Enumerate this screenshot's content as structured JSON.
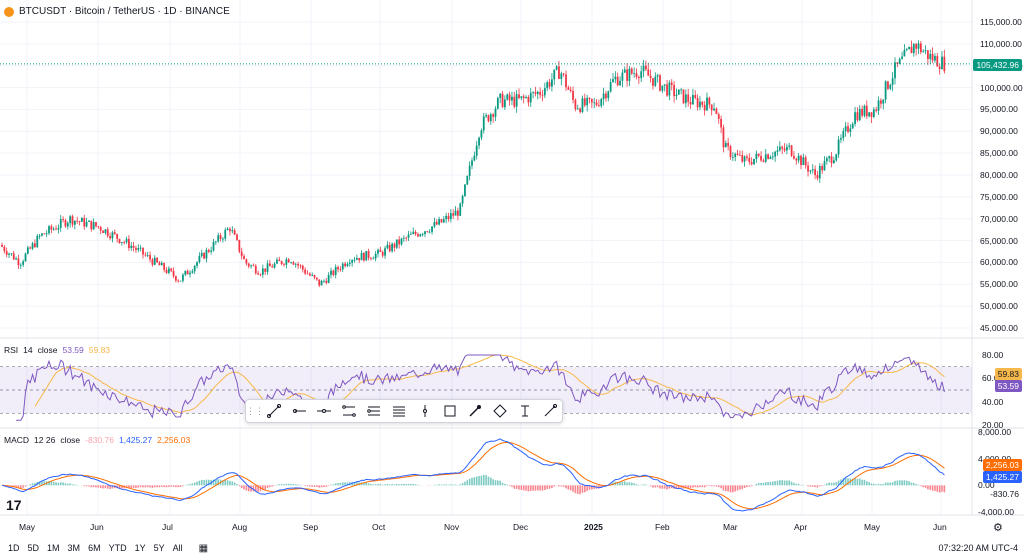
{
  "header": {
    "title": "BTCUSDT · Bitcoin / TetherUS · 1D · BINANCE"
  },
  "price_axis": [
    "115,000.00",
    "110,000.00",
    "105,000.00",
    "100,000.00",
    "95,000.00",
    "90,000.00",
    "85,000.00",
    "80,000.00",
    "75,000.00",
    "70,000.00",
    "65,000.00",
    "60,000.00",
    "55,000.00",
    "50,000.00",
    "45,000.00"
  ],
  "last_price": {
    "label": "105,432.96",
    "color": "#089981"
  },
  "rsi": {
    "name": "RSI",
    "params": "14",
    "source": "close",
    "value": "53.59",
    "ma_value": "59.83",
    "axis": [
      "80.00",
      "60.00",
      "40.00",
      "20.00"
    ],
    "line_color": "#7e57c2",
    "ma_color": "#f7b84b"
  },
  "macd": {
    "name": "MACD",
    "params": "12 26",
    "source": "close",
    "hist": "-830.76",
    "macd": "1,425.27",
    "signal": "2,256.03",
    "axis": [
      "8,000.00",
      "4,000.00",
      "0.00",
      "-4,000.00"
    ],
    "macd_color": "#2962ff",
    "signal_color": "#ff6d00"
  },
  "time_axis": [
    "May",
    "Jun",
    "Jul",
    "Aug",
    "Sep",
    "Oct",
    "Nov",
    "Dec",
    "2025",
    "Feb",
    "Mar",
    "Apr",
    "May",
    "Jun"
  ],
  "bottom_bar": {
    "ranges": [
      "1D",
      "5D",
      "1M",
      "3M",
      "6M",
      "YTD",
      "1Y",
      "5Y",
      "All"
    ],
    "clock": "07:32:20 AM UTC-4"
  },
  "toolbar": {
    "tools": [
      "trend-line-icon",
      "horizontal-ray-icon",
      "horizontal-line-icon",
      "parallel-channel-icon",
      "regression-channel-icon",
      "flat-lines-icon",
      "vertical-line-icon",
      "rectangle-icon",
      "brush-icon",
      "path-icon",
      "text-cursor-icon",
      "arrow-line-icon"
    ]
  },
  "chart_data": {
    "type": "candlestick",
    "symbol": "BTCUSDT",
    "interval": "1D",
    "series": [
      {
        "name": "price",
        "x": [
          "May",
          "Jun",
          "Jul",
          "Aug",
          "Sep",
          "Oct",
          "Nov",
          "Dec",
          "2025",
          "Feb",
          "Mar",
          "Apr",
          "May",
          "Jun"
        ],
        "values": [
          62000,
          68000,
          58000,
          59000,
          58000,
          62000,
          70000,
          96000,
          95000,
          100000,
          86000,
          82000,
          95000,
          105432.96
        ]
      }
    ],
    "ylim": [
      45000,
      115000
    ]
  },
  "colors": {
    "up": "#089981",
    "down": "#f23645",
    "grid": "#f0f3fa"
  }
}
